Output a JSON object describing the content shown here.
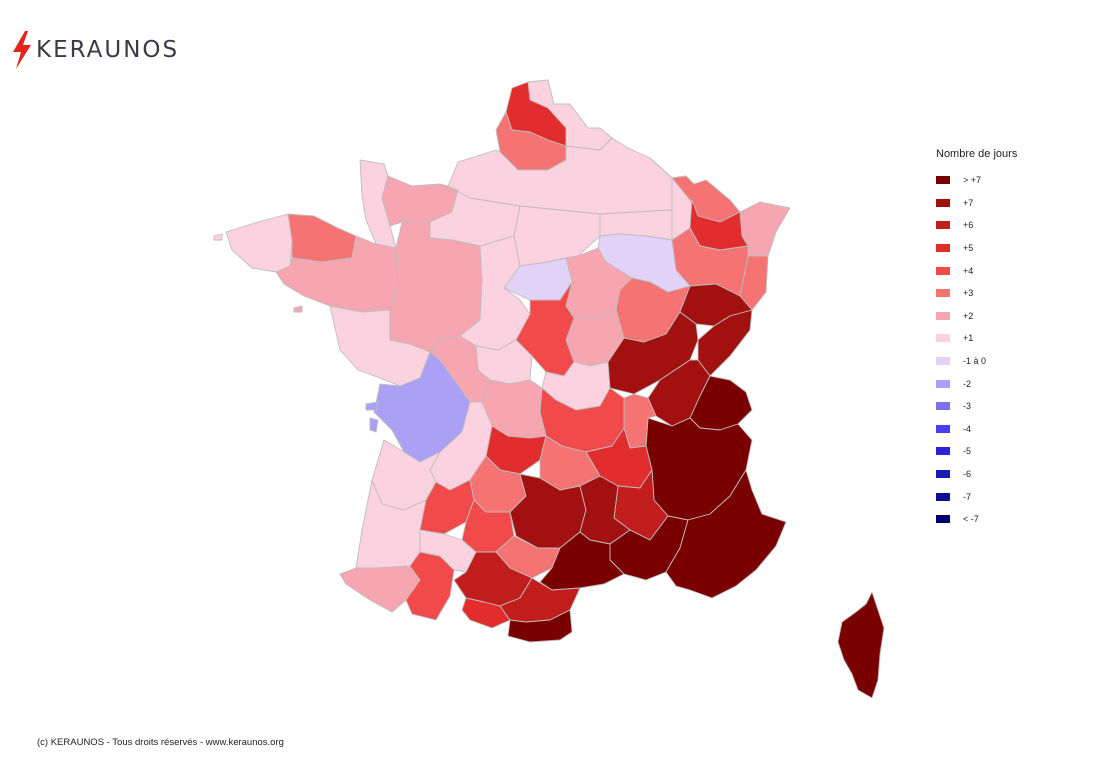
{
  "brand": {
    "name": "KERAUNOS",
    "accent": "#e1261c"
  },
  "legend": {
    "title": "Nombre de jours",
    "items": [
      {
        "label": "> +7",
        "color": "#7a0000"
      },
      {
        "label": "+7",
        "color": "#a21010"
      },
      {
        "label": "+6",
        "color": "#c21d1d"
      },
      {
        "label": "+5",
        "color": "#e12d2d"
      },
      {
        "label": "+4",
        "color": "#f24a4a"
      },
      {
        "label": "+3",
        "color": "#f57373"
      },
      {
        "label": "+2",
        "color": "#f7a5b0"
      },
      {
        "label": "+1",
        "color": "#fcd2e0"
      },
      {
        "label": "-1 à 0",
        "color": "#e2d2f7"
      },
      {
        "label": "-2",
        "color": "#aba0f5"
      },
      {
        "label": "-3",
        "color": "#7f70ee"
      },
      {
        "label": "-4",
        "color": "#4a3df0"
      },
      {
        "label": "-5",
        "color": "#2e22d8"
      },
      {
        "label": "-6",
        "color": "#1a1ab5"
      },
      {
        "label": "-7",
        "color": "#0e0e92"
      },
      {
        "label": "< -7",
        "color": "#000070"
      }
    ]
  },
  "map": {
    "regions": [
      {
        "name": "nord-coast",
        "class": "+1"
      },
      {
        "name": "nord-lille",
        "class": "+5"
      },
      {
        "name": "pas-de-calais",
        "class": "+3"
      },
      {
        "name": "picardie",
        "class": "+1"
      },
      {
        "name": "normandie-manche",
        "class": "+1"
      },
      {
        "name": "calvados",
        "class": "+2"
      },
      {
        "name": "normandie-est",
        "class": "+1"
      },
      {
        "name": "bretagne-finistere",
        "class": "+1"
      },
      {
        "name": "cotes-armor",
        "class": "+3"
      },
      {
        "name": "bretagne-sud",
        "class": "+2"
      },
      {
        "name": "pays-de-la-loire",
        "class": "+2"
      },
      {
        "name": "vendee",
        "class": "+1"
      },
      {
        "name": "centre-loire",
        "class": "+1"
      },
      {
        "name": "ile-de-france",
        "class": "+1"
      },
      {
        "name": "champagne",
        "class": "+1"
      },
      {
        "name": "lorraine-ouest",
        "class": "+1"
      },
      {
        "name": "moselle",
        "class": "+3"
      },
      {
        "name": "alsace-nord",
        "class": "+2"
      },
      {
        "name": "meurthe",
        "class": "+5"
      },
      {
        "name": "alsace-sud",
        "class": "+3"
      },
      {
        "name": "vosges",
        "class": "+3"
      },
      {
        "name": "haute-marne",
        "class": "-1 à 0"
      },
      {
        "name": "loiret",
        "class": "-1 à 0"
      },
      {
        "name": "yonne",
        "class": "+2"
      },
      {
        "name": "cote-dor",
        "class": "+3"
      },
      {
        "name": "nievre",
        "class": "+2"
      },
      {
        "name": "cher",
        "class": "+4"
      },
      {
        "name": "indre",
        "class": "+1"
      },
      {
        "name": "allier",
        "class": "+1"
      },
      {
        "name": "franche-comte",
        "class": "+7"
      },
      {
        "name": "doubs",
        "class": "+7"
      },
      {
        "name": "saone-et-loire",
        "class": "+7"
      },
      {
        "name": "ain",
        "class": "+7"
      },
      {
        "name": "haute-savoie",
        "class": "> +7"
      },
      {
        "name": "rhone-alpes",
        "class": "> +7"
      },
      {
        "name": "loire",
        "class": "+3"
      },
      {
        "name": "puy-de-dome",
        "class": "+4"
      },
      {
        "name": "haute-loire",
        "class": "+5"
      },
      {
        "name": "ardeche",
        "class": "+6"
      },
      {
        "name": "charente",
        "class": "-2"
      },
      {
        "name": "vienne",
        "class": "+2"
      },
      {
        "name": "limousin",
        "class": "+2"
      },
      {
        "name": "correze",
        "class": "+5"
      },
      {
        "name": "cantal",
        "class": "+3"
      },
      {
        "name": "dordogne",
        "class": "+1"
      },
      {
        "name": "gironde",
        "class": "+1"
      },
      {
        "name": "landes",
        "class": "+1"
      },
      {
        "name": "lot",
        "class": "+3"
      },
      {
        "name": "lot-et-garonne",
        "class": "+4"
      },
      {
        "name": "tarn-et-garonne",
        "class": "+4"
      },
      {
        "name": "aveyron",
        "class": "+7"
      },
      {
        "name": "lozere",
        "class": "+7"
      },
      {
        "name": "tarn",
        "class": "+3"
      },
      {
        "name": "gard",
        "class": "> +7"
      },
      {
        "name": "herault",
        "class": "> +7"
      },
      {
        "name": "provence",
        "class": "> +7"
      },
      {
        "name": "pyrenees-atlantiques",
        "class": "+2"
      },
      {
        "name": "hautes-pyrenees",
        "class": "+4"
      },
      {
        "name": "gers",
        "class": "+1"
      },
      {
        "name": "haute-garonne",
        "class": "+6"
      },
      {
        "name": "ariege",
        "class": "+5"
      },
      {
        "name": "aude",
        "class": "+6"
      },
      {
        "name": "pyrenees-orientales",
        "class": "> +7"
      },
      {
        "name": "corse",
        "class": "> +7"
      }
    ]
  },
  "copyright": "(c) KERAUNOS - Tous droits réservés - www.keraunos.org"
}
